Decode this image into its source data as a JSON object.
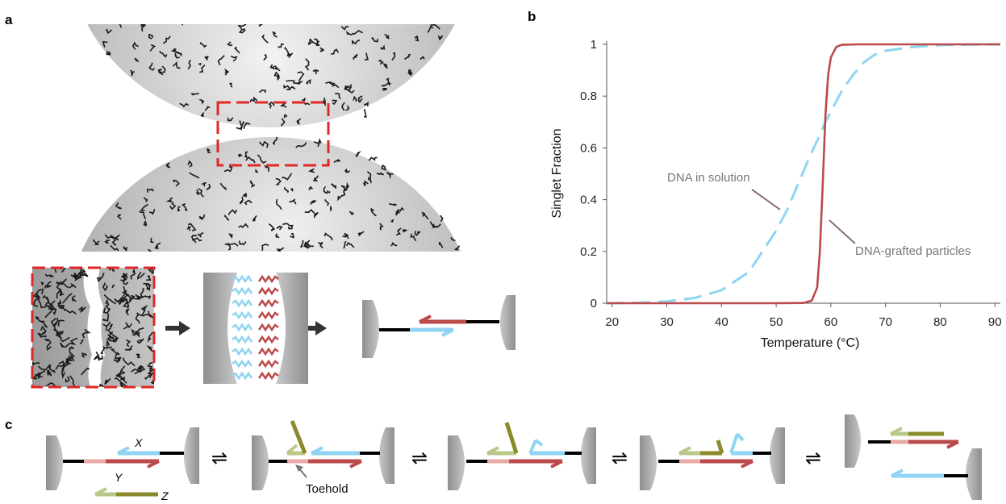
{
  "panels": {
    "a": "a",
    "b": "b",
    "c": "c"
  },
  "colors": {
    "cyan": "#8fd4f2",
    "red": "#bb4a4a",
    "pink": "#e7aaa8",
    "olive": "#8a8a2a",
    "olive_light": "#b9c88a",
    "particle_gray": "#a0a0a0",
    "callout_gray": "#777777"
  },
  "chart_data": {
    "type": "line",
    "xlabel": "Temperature (°C)",
    "ylabel": "Singlet Fraction",
    "xlim": [
      19,
      91
    ],
    "ylim": [
      0,
      1
    ],
    "x_ticks": [
      "20",
      "30",
      "40",
      "50",
      "60",
      "70",
      "80",
      "90"
    ],
    "y_ticks": [
      "0",
      "0.2",
      "0.4",
      "0.6",
      "0.8",
      "1"
    ],
    "series": [
      {
        "name": "DNA in solution",
        "style": "dashed",
        "color": "#8fd4f2",
        "x": [
          19,
          25,
          30,
          35,
          40,
          45,
          50,
          52,
          54,
          56,
          58,
          59,
          60,
          62,
          64,
          66,
          68,
          70,
          75,
          80,
          85,
          91
        ],
        "y": [
          0.0,
          0.002,
          0.007,
          0.02,
          0.05,
          0.12,
          0.28,
          0.36,
          0.46,
          0.56,
          0.65,
          0.7,
          0.74,
          0.82,
          0.88,
          0.93,
          0.96,
          0.975,
          0.99,
          0.997,
          0.999,
          1.0
        ]
      },
      {
        "name": "DNA-grafted particles",
        "style": "solid",
        "color": "#bb4a4a",
        "x": [
          19,
          30,
          40,
          50,
          55,
          56.5,
          57.5,
          58.0,
          58.5,
          59.0,
          59.5,
          60.0,
          61.0,
          62.0,
          65,
          70,
          80,
          91
        ],
        "y": [
          0.0,
          0.0,
          0.0,
          0.0,
          0.001,
          0.01,
          0.06,
          0.2,
          0.45,
          0.72,
          0.88,
          0.95,
          0.99,
          0.998,
          1.0,
          1.0,
          1.0,
          1.0
        ]
      }
    ],
    "annotations": [
      "DNA in solution",
      "DNA-grafted particles"
    ]
  },
  "panel_c": {
    "strand_labels": {
      "x": "X",
      "y": "Y",
      "z": "Z"
    },
    "toehold_label": "Toehold",
    "equilibrium_symbol": "⇌"
  }
}
